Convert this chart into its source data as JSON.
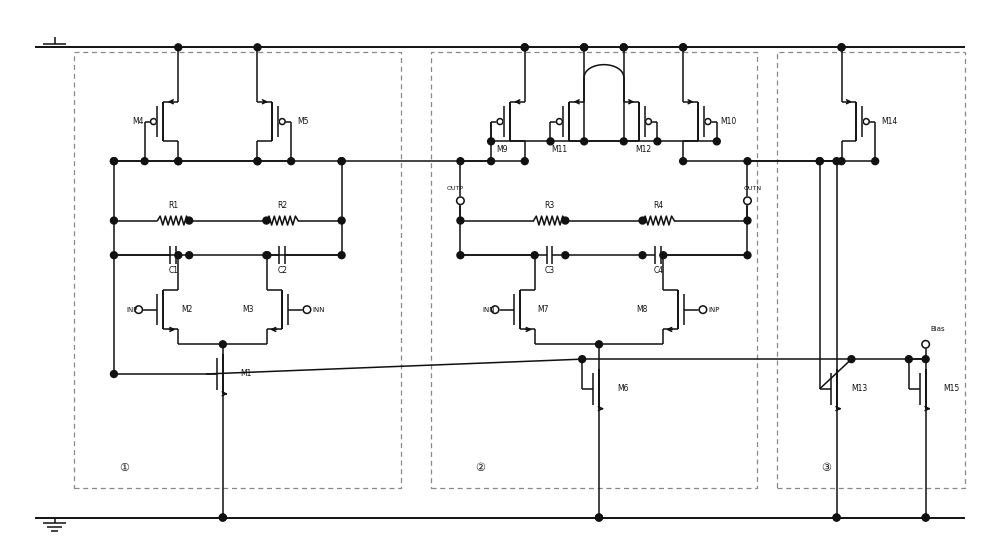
{
  "bg_color": "#ffffff",
  "line_color": "#111111",
  "fig_width": 10.0,
  "fig_height": 5.5,
  "dpi": 100,
  "xlim": [
    0,
    100
  ],
  "ylim": [
    0,
    55
  ]
}
